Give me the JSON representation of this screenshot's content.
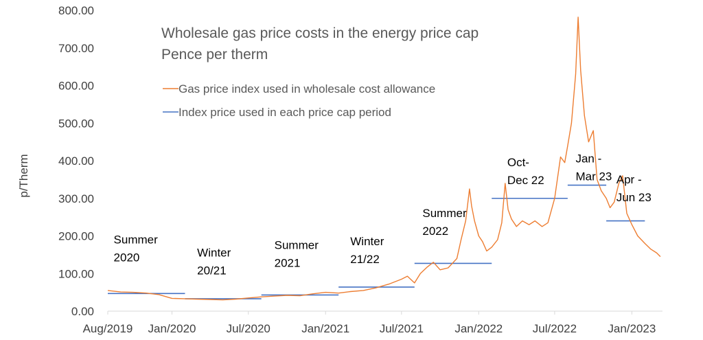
{
  "chart_data": {
    "type": "line",
    "title": "Wholesale gas price costs in the energy price cap",
    "subtitle": "Pence per therm",
    "xlabel": "",
    "ylabel": "p/Therm",
    "ylim": [
      0,
      800
    ],
    "y_ticks": [
      "0.00",
      "100.00",
      "200.00",
      "300.00",
      "400.00",
      "500.00",
      "600.00",
      "700.00",
      "800.00"
    ],
    "x_range": [
      "2019-08-01",
      "2023-03-15"
    ],
    "x_ticks": [
      {
        "date": "2019-08-01",
        "label": "Aug/2019"
      },
      {
        "date": "2020-01-01",
        "label": "Jan/2020"
      },
      {
        "date": "2020-07-01",
        "label": "Jul/2020"
      },
      {
        "date": "2021-01-01",
        "label": "Jan/2021"
      },
      {
        "date": "2021-07-01",
        "label": "Jul/2021"
      },
      {
        "date": "2022-01-01",
        "label": "Jan/2022"
      },
      {
        "date": "2022-07-01",
        "label": "Jul/2022"
      },
      {
        "date": "2023-01-01",
        "label": "Jan/2023"
      }
    ],
    "legend_position": "top-left",
    "grid": false,
    "colors": {
      "index_line": "#ED7D31",
      "cap_price": "#4472C4",
      "axis": "#D9D9D9"
    },
    "series": [
      {
        "name": "Gas price index used in wholesale cost allowance",
        "points": [
          [
            "2019-08-01",
            55
          ],
          [
            "2019-09-01",
            51
          ],
          [
            "2019-10-01",
            50
          ],
          [
            "2019-11-01",
            48
          ],
          [
            "2019-12-01",
            44
          ],
          [
            "2020-01-01",
            34
          ],
          [
            "2020-02-01",
            33
          ],
          [
            "2020-03-01",
            32
          ],
          [
            "2020-04-01",
            31
          ],
          [
            "2020-05-01",
            30
          ],
          [
            "2020-06-01",
            32
          ],
          [
            "2020-07-01",
            35
          ],
          [
            "2020-08-01",
            38
          ],
          [
            "2020-09-01",
            40
          ],
          [
            "2020-10-01",
            42
          ],
          [
            "2020-11-01",
            41
          ],
          [
            "2020-12-01",
            46
          ],
          [
            "2021-01-01",
            50
          ],
          [
            "2021-02-01",
            48
          ],
          [
            "2021-03-01",
            52
          ],
          [
            "2021-04-01",
            55
          ],
          [
            "2021-05-01",
            62
          ],
          [
            "2021-06-01",
            72
          ],
          [
            "2021-07-01",
            85
          ],
          [
            "2021-07-15",
            93
          ],
          [
            "2021-08-01",
            75
          ],
          [
            "2021-08-15",
            100
          ],
          [
            "2021-09-01",
            118
          ],
          [
            "2021-09-15",
            130
          ],
          [
            "2021-10-01",
            110
          ],
          [
            "2021-10-20",
            115
          ],
          [
            "2021-11-10",
            140
          ],
          [
            "2021-11-20",
            190
          ],
          [
            "2021-12-01",
            240
          ],
          [
            "2021-12-10",
            325
          ],
          [
            "2021-12-15",
            280
          ],
          [
            "2021-12-22",
            240
          ],
          [
            "2022-01-01",
            200
          ],
          [
            "2022-01-10",
            185
          ],
          [
            "2022-01-20",
            160
          ],
          [
            "2022-02-01",
            170
          ],
          [
            "2022-02-15",
            190
          ],
          [
            "2022-02-25",
            235
          ],
          [
            "2022-03-05",
            340
          ],
          [
            "2022-03-12",
            270
          ],
          [
            "2022-03-20",
            245
          ],
          [
            "2022-04-01",
            225
          ],
          [
            "2022-04-15",
            240
          ],
          [
            "2022-05-01",
            230
          ],
          [
            "2022-05-15",
            240
          ],
          [
            "2022-06-01",
            225
          ],
          [
            "2022-06-15",
            235
          ],
          [
            "2022-07-01",
            300
          ],
          [
            "2022-07-15",
            410
          ],
          [
            "2022-07-25",
            395
          ],
          [
            "2022-08-01",
            440
          ],
          [
            "2022-08-10",
            500
          ],
          [
            "2022-08-20",
            630
          ],
          [
            "2022-08-26",
            782
          ],
          [
            "2022-09-01",
            640
          ],
          [
            "2022-09-10",
            520
          ],
          [
            "2022-09-20",
            450
          ],
          [
            "2022-10-01",
            480
          ],
          [
            "2022-10-10",
            350
          ],
          [
            "2022-10-20",
            320
          ],
          [
            "2022-11-01",
            300
          ],
          [
            "2022-11-10",
            275
          ],
          [
            "2022-11-20",
            290
          ],
          [
            "2022-12-01",
            340
          ],
          [
            "2022-12-10",
            360
          ],
          [
            "2022-12-20",
            260
          ],
          [
            "2023-01-01",
            230
          ],
          [
            "2023-01-15",
            200
          ],
          [
            "2023-02-01",
            180
          ],
          [
            "2023-02-15",
            165
          ],
          [
            "2023-03-01",
            155
          ],
          [
            "2023-03-10",
            145
          ]
        ]
      },
      {
        "name": "Index price used in each price cap period",
        "segments": [
          {
            "start": "2019-08-01",
            "end": "2020-02-01",
            "value": 47
          },
          {
            "start": "2020-02-01",
            "end": "2020-08-01",
            "value": 33
          },
          {
            "start": "2020-08-01",
            "end": "2021-02-01",
            "value": 43
          },
          {
            "start": "2021-02-01",
            "end": "2021-08-01",
            "value": 64
          },
          {
            "start": "2021-08-01",
            "end": "2022-02-01",
            "value": 127
          },
          {
            "start": "2022-02-01",
            "end": "2022-08-01",
            "value": 300
          },
          {
            "start": "2022-08-01",
            "end": "2022-11-01",
            "value": 335
          },
          {
            "start": "2022-11-01",
            "end": "2023-02-01",
            "value": 240
          }
        ]
      }
    ],
    "annotations": [
      {
        "lines": [
          "Summer",
          "2020"
        ],
        "date": "2019-08-15",
        "value": 180
      },
      {
        "lines": [
          "Winter",
          "20/21"
        ],
        "date": "2020-03-01",
        "value": 145
      },
      {
        "lines": [
          "Summer",
          "2021"
        ],
        "date": "2020-09-01",
        "value": 165
      },
      {
        "lines": [
          "Winter",
          "21/22"
        ],
        "date": "2021-03-01",
        "value": 175
      },
      {
        "lines": [
          "Summer",
          "2022"
        ],
        "date": "2021-08-20",
        "value": 250
      },
      {
        "lines": [
          "Oct-",
          "Dec 22"
        ],
        "date": "2022-03-10",
        "value": 385
      },
      {
        "lines": [
          "Jan -",
          "Mar 23"
        ],
        "date": "2022-08-20",
        "value": 395
      },
      {
        "lines": [
          "Apr -",
          "Jun 23"
        ],
        "date": "2022-11-25",
        "value": 340
      }
    ]
  }
}
